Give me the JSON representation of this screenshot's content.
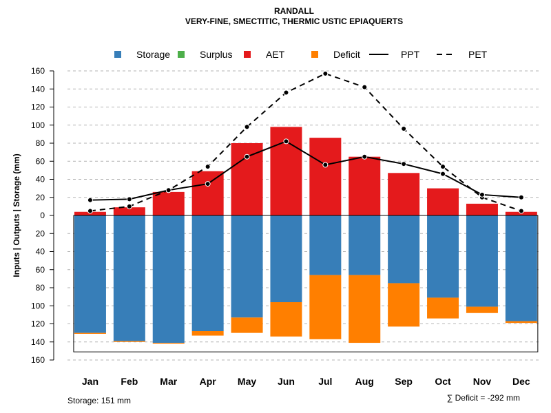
{
  "chart_data": {
    "type": "bar",
    "title": "RANDALL",
    "subtitle": "VERY-FINE, SMECTITIC, THERMIC USTIC EPIAQUERTS",
    "ylabel": "Inputs | Outputs | Storage    (mm)",
    "categories": [
      "Jan",
      "Feb",
      "Mar",
      "Apr",
      "May",
      "Jun",
      "Jul",
      "Aug",
      "Sep",
      "Oct",
      "Nov",
      "Dec"
    ],
    "ylim": [
      -160,
      160
    ],
    "yticks": [
      160,
      140,
      120,
      100,
      80,
      60,
      40,
      20,
      0,
      20,
      40,
      60,
      80,
      100,
      120,
      140,
      160
    ],
    "grid": "horizontal dashed",
    "legend_position": "top",
    "legend": [
      {
        "label": "Storage",
        "kind": "square",
        "color": "#377EB8"
      },
      {
        "label": "Surplus",
        "kind": "square",
        "color": "#4DAF4A"
      },
      {
        "label": "AET",
        "kind": "square",
        "color": "#E41A1C"
      },
      {
        "label": "Deficit",
        "kind": "square",
        "color": "#FF7F00"
      },
      {
        "label": "PPT",
        "kind": "solid-line",
        "color": "#000000"
      },
      {
        "label": "PET",
        "kind": "dashed-line",
        "color": "#000000"
      }
    ],
    "series": [
      {
        "name": "AET",
        "direction": "up",
        "color": "#E41A1C",
        "values": [
          4,
          9,
          26,
          49,
          80,
          98,
          86,
          65,
          47,
          30,
          13,
          4
        ]
      },
      {
        "name": "Storage",
        "direction": "down",
        "color": "#377EB8",
        "values": [
          130,
          139,
          141,
          128,
          113,
          96,
          66,
          66,
          75,
          91,
          101,
          117
        ]
      },
      {
        "name": "Deficit",
        "direction": "down",
        "color": "#FF7F00",
        "values": [
          1,
          1,
          1,
          5,
          17,
          38,
          71,
          75,
          48,
          23,
          7,
          2
        ]
      },
      {
        "name": "Surplus",
        "direction": "up",
        "color": "#4DAF4A",
        "values": [
          0,
          0,
          0,
          0,
          0,
          0,
          0,
          0,
          0,
          0,
          0,
          0
        ]
      },
      {
        "name": "PPT",
        "kind": "line",
        "color": "#000000",
        "values": [
          17,
          18,
          28,
          35,
          65,
          82,
          56,
          65,
          57,
          46,
          23,
          20
        ]
      },
      {
        "name": "PET",
        "kind": "dashed-line",
        "color": "#000000",
        "values": [
          5,
          10,
          28,
          54,
          98,
          136,
          157,
          142,
          96,
          54,
          20,
          5
        ]
      }
    ],
    "storage_capacity": 151,
    "annotations": {
      "storage": "Storage: 151 mm",
      "deficit": "∑ Deficit = -292 mm"
    }
  }
}
